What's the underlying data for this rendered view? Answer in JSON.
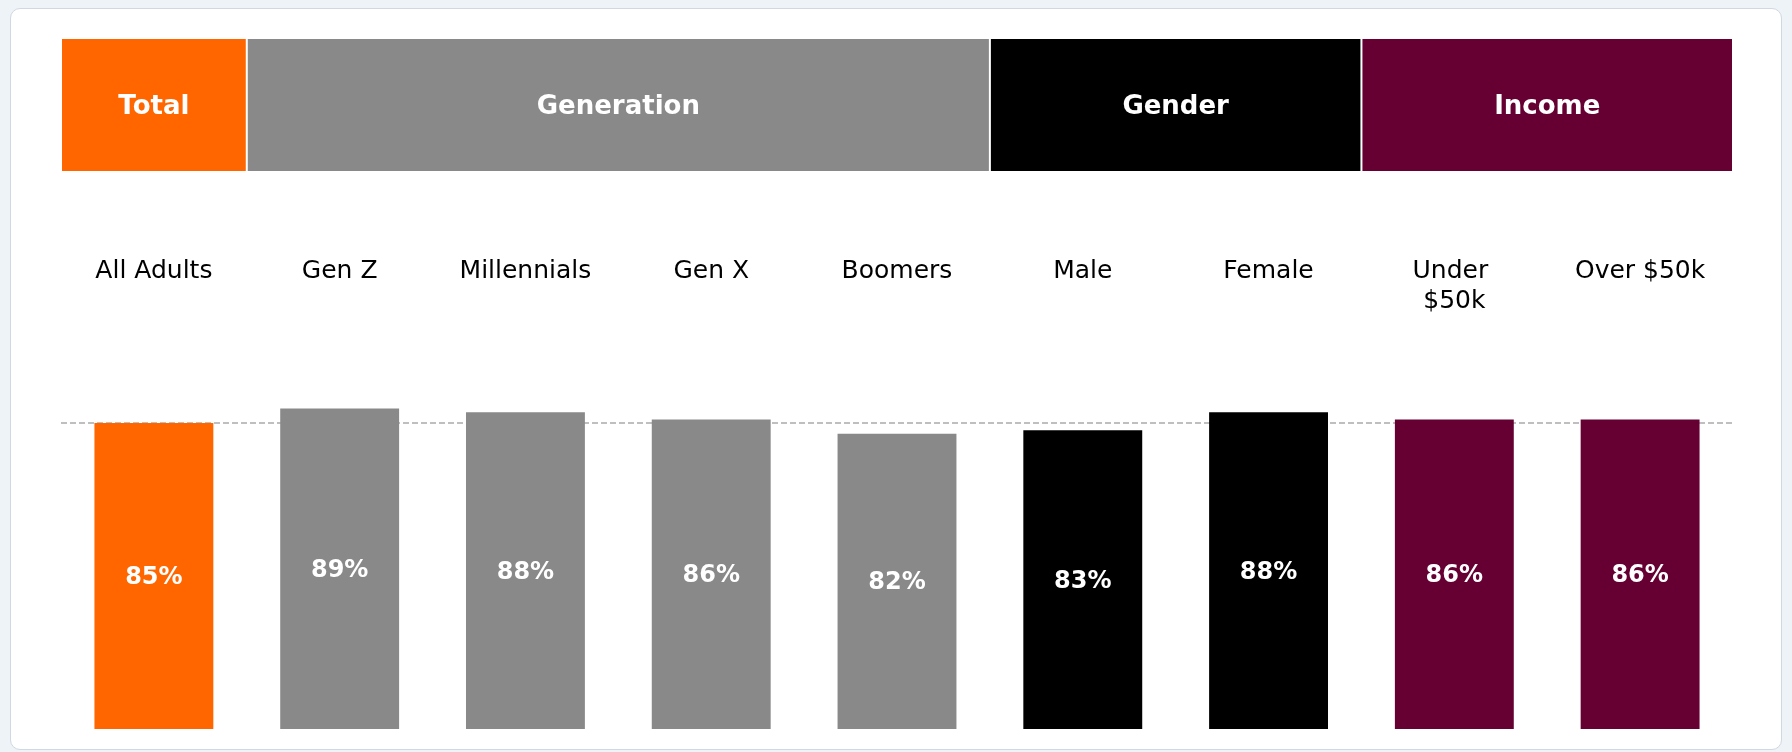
{
  "chart_data": {
    "type": "bar",
    "categories": [
      "All Adults",
      "Gen Z",
      "Millennials",
      "Gen X",
      "Boomers",
      "Male",
      "Female",
      "Under $50k",
      "Over $50k"
    ],
    "values": [
      85,
      89,
      88,
      86,
      82,
      83,
      88,
      86,
      86
    ],
    "colors": [
      "#ff6600",
      "#898989",
      "#898989",
      "#898989",
      "#898989",
      "#000000",
      "#000000",
      "#660033",
      "#660033"
    ],
    "annotations": [
      "Total",
      "Generation",
      "Gender",
      "Income"
    ],
    "value_labels": [
      "85%",
      "89%",
      "88%",
      "86%",
      "82%",
      "83%",
      "88%",
      "86%",
      "86%"
    ],
    "tick_labels": "x",
    "ref_lines": [
      {
        "axis": "y",
        "value": 85,
        "label": null,
        "color": "#aaaaaa",
        "line_style": "dashed"
      }
    ]
  }
}
